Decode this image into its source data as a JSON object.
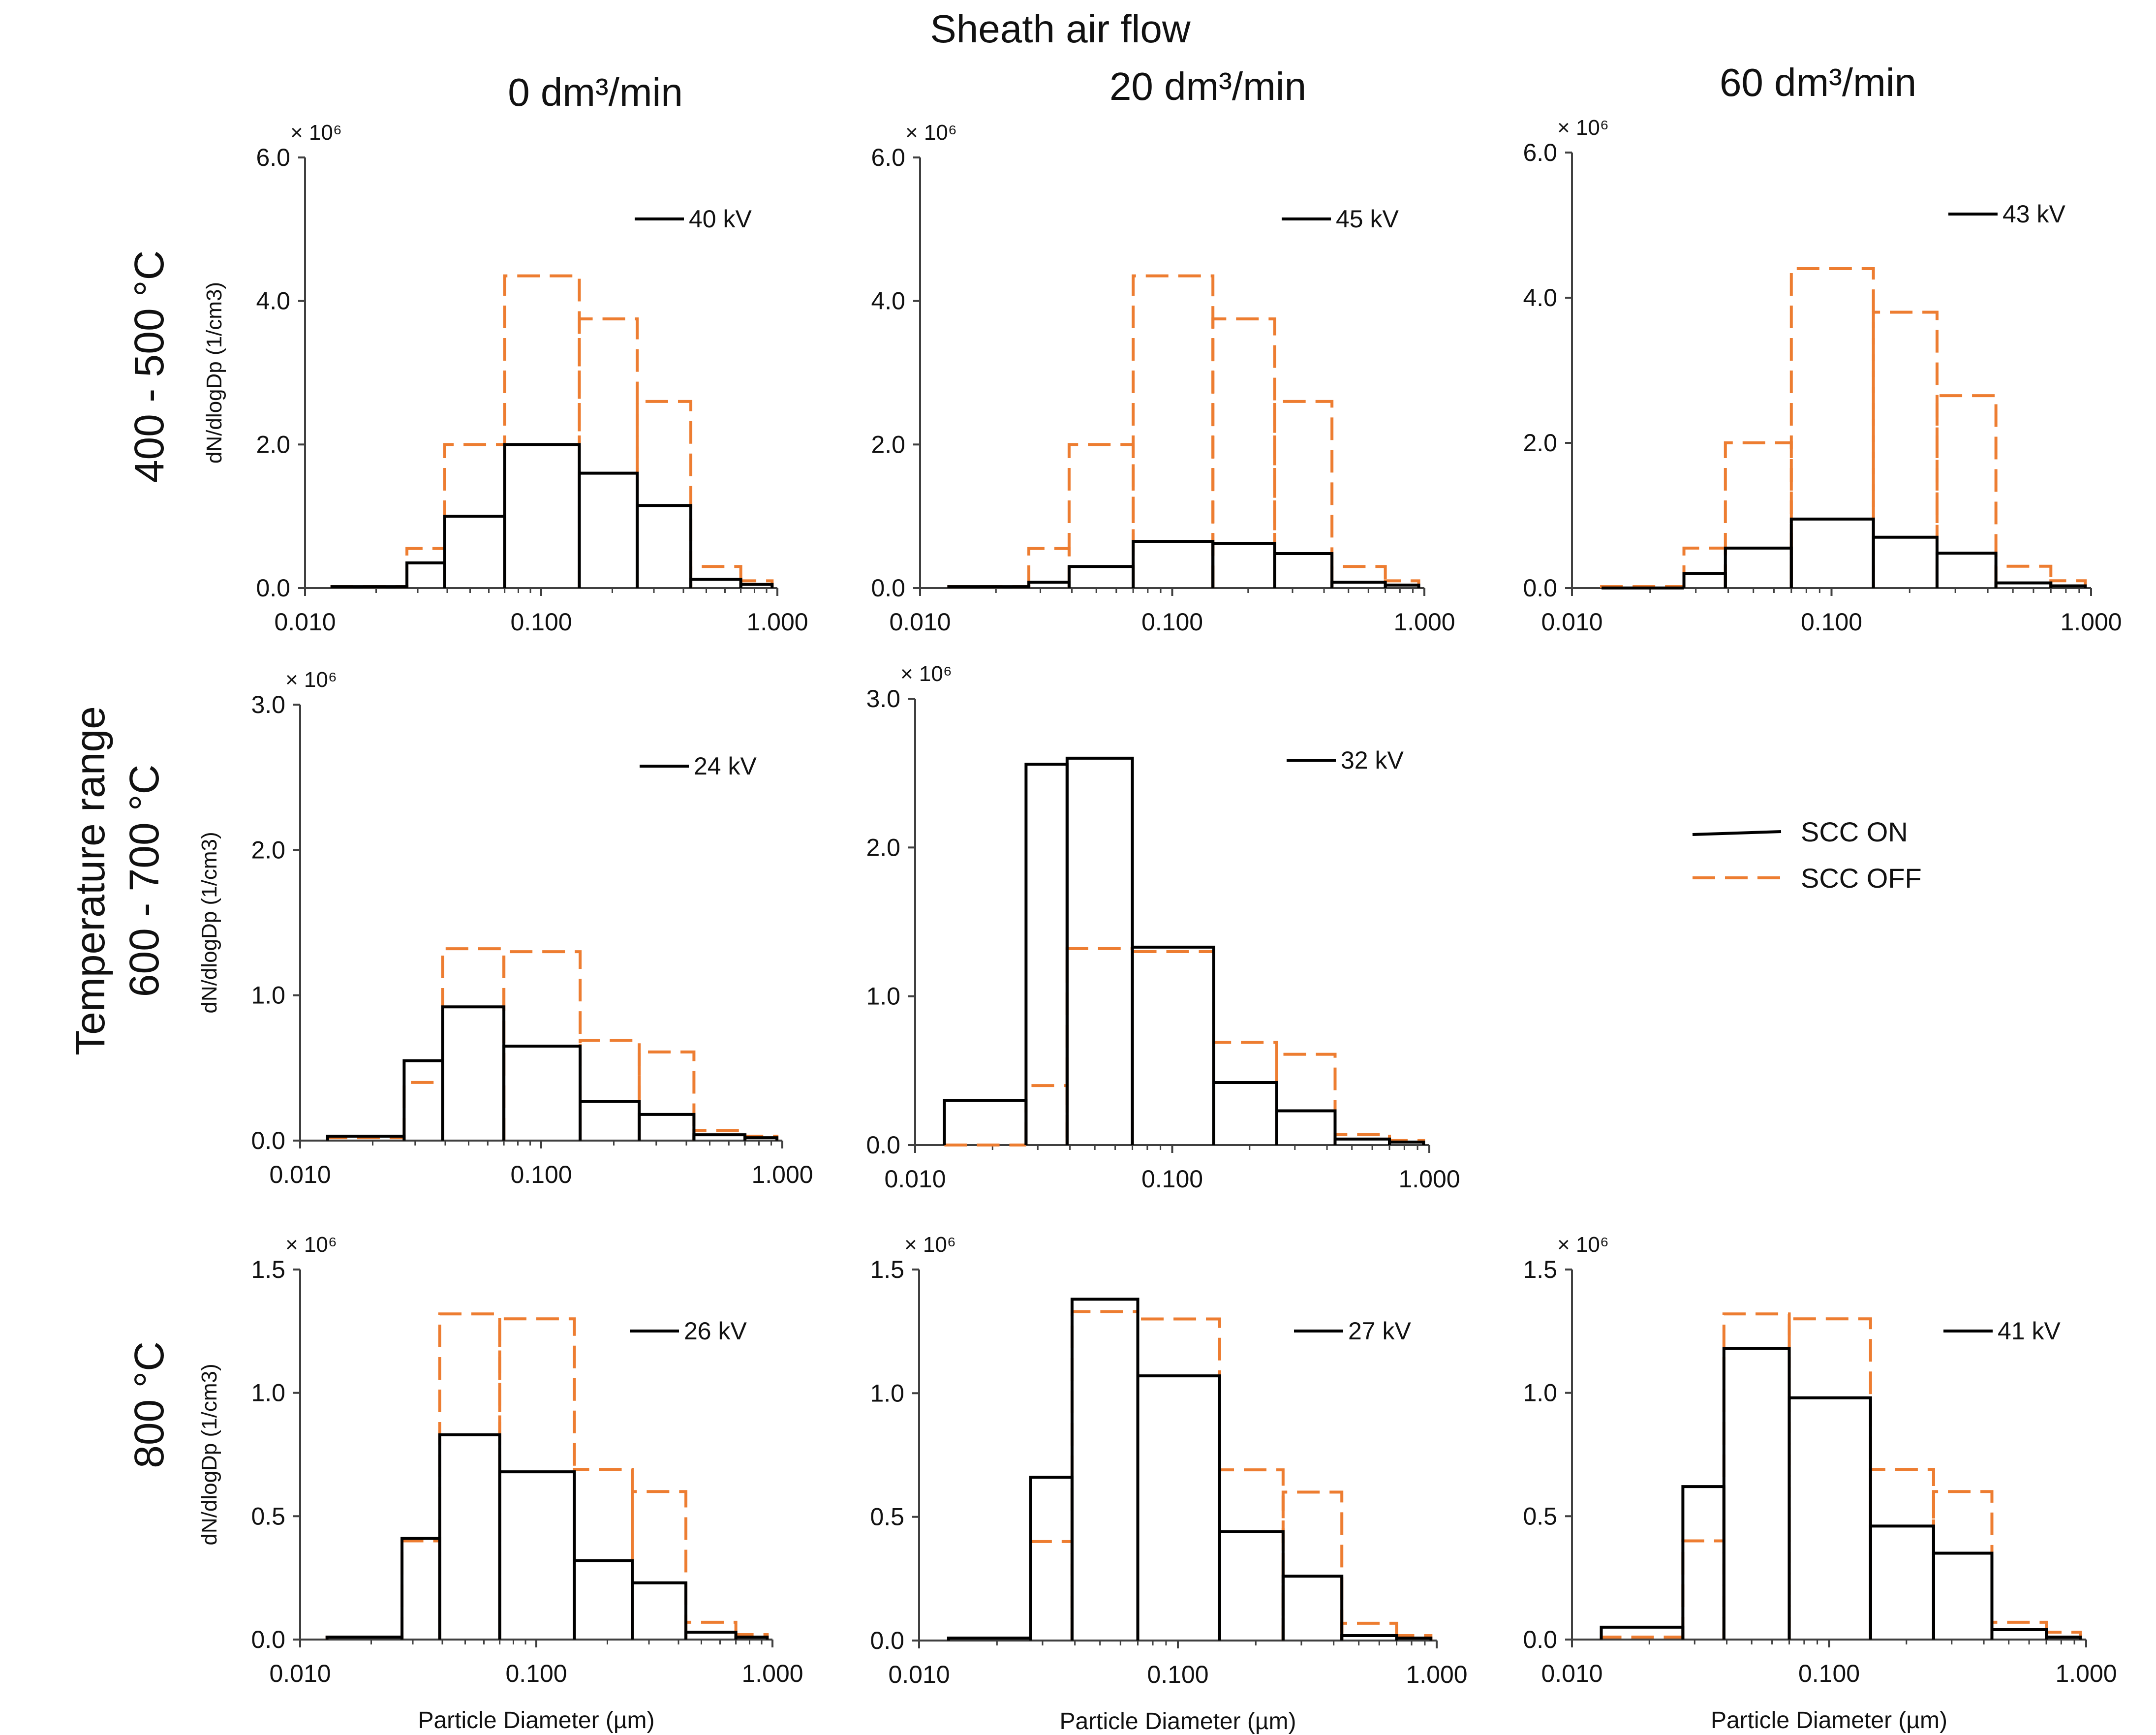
{
  "header": {
    "title": "Sheath air flow",
    "col1": "0 dm³/min",
    "col2": "20 dm³/min",
    "col3": "60 dm³/min"
  },
  "rows": {
    "row1": "400 - 500 °C",
    "row2_line1": "Temperature range",
    "row2_line2": "600 - 700 °C",
    "row3": "800 °C"
  },
  "legend": {
    "on": "SCC ON",
    "off": "SCC OFF"
  },
  "colors": {
    "on": "#000000",
    "off": "#ED7D31",
    "axis": "#404040"
  },
  "chart_data": [
    {
      "type": "histogram",
      "row": 1,
      "col": 1,
      "ylabel": "dN/dlogDp (1/cm3)",
      "xlabel": "",
      "ylim": [
        0,
        6.0
      ],
      "yticks": [
        "0.0",
        "2.0",
        "4.0",
        "6.0"
      ],
      "multiplier": "× 10⁶",
      "xlim": [
        0.01,
        1.0
      ],
      "xticks": [
        "0.010",
        "0.100",
        "1.000"
      ],
      "annotation": "40 kV",
      "bin_edges": [
        0.013,
        0.027,
        0.039,
        0.07,
        0.145,
        0.255,
        0.43,
        0.7,
        0.95
      ],
      "series": [
        {
          "name": "SCC ON",
          "values": [
            0.02,
            0.35,
            1.0,
            2.0,
            1.6,
            1.15,
            0.12,
            0.05
          ]
        },
        {
          "name": "SCC OFF",
          "values": [
            0.02,
            0.55,
            2.0,
            4.35,
            3.75,
            2.6,
            0.3,
            0.1
          ]
        }
      ]
    },
    {
      "type": "histogram",
      "row": 1,
      "col": 2,
      "ylabel": "",
      "xlabel": "",
      "ylim": [
        0,
        6.0
      ],
      "yticks": [
        "0.0",
        "2.0",
        "4.0",
        "6.0"
      ],
      "multiplier": "× 10⁶",
      "xlim": [
        0.01,
        1.0
      ],
      "xticks": [
        "0.010",
        "0.100",
        "1.000"
      ],
      "annotation": "45 kV",
      "bin_edges": [
        0.013,
        0.027,
        0.039,
        0.07,
        0.145,
        0.255,
        0.43,
        0.7,
        0.95
      ],
      "series": [
        {
          "name": "SCC ON",
          "values": [
            0.02,
            0.08,
            0.3,
            0.65,
            0.62,
            0.48,
            0.08,
            0.04
          ]
        },
        {
          "name": "SCC OFF",
          "values": [
            0.02,
            0.55,
            2.0,
            4.35,
            3.75,
            2.6,
            0.3,
            0.1
          ]
        }
      ]
    },
    {
      "type": "histogram",
      "row": 1,
      "col": 3,
      "ylabel": "",
      "xlabel": "",
      "ylim": [
        0,
        6.0
      ],
      "yticks": [
        "0.0",
        "2.0",
        "4.0",
        "6.0"
      ],
      "multiplier": "× 10⁶",
      "xlim": [
        0.01,
        1.0
      ],
      "xticks": [
        "0.010",
        "0.100",
        "1.000"
      ],
      "annotation": "43 kV",
      "bin_edges": [
        0.013,
        0.027,
        0.039,
        0.07,
        0.145,
        0.255,
        0.43,
        0.7,
        0.95
      ],
      "series": [
        {
          "name": "SCC ON",
          "values": [
            0.0,
            0.2,
            0.55,
            0.95,
            0.7,
            0.48,
            0.07,
            0.03
          ]
        },
        {
          "name": "SCC OFF",
          "values": [
            0.02,
            0.55,
            2.0,
            4.4,
            3.8,
            2.65,
            0.3,
            0.1
          ]
        }
      ]
    },
    {
      "type": "histogram",
      "row": 2,
      "col": 1,
      "ylabel": "dN/dlogDp (1/cm3)",
      "xlabel": "",
      "ylim": [
        0,
        3.0
      ],
      "yticks": [
        "0.0",
        "1.0",
        "2.0",
        "3.0"
      ],
      "multiplier": "× 10⁶",
      "xlim": [
        0.01,
        1.0
      ],
      "xticks": [
        "0.010",
        "0.100",
        "1.000"
      ],
      "annotation": "24 kV",
      "bin_edges": [
        0.013,
        0.027,
        0.039,
        0.07,
        0.145,
        0.255,
        0.43,
        0.7,
        0.95
      ],
      "series": [
        {
          "name": "SCC ON",
          "values": [
            0.03,
            0.55,
            0.92,
            0.65,
            0.27,
            0.18,
            0.04,
            0.02
          ]
        },
        {
          "name": "SCC OFF",
          "values": [
            0.02,
            0.4,
            1.32,
            1.3,
            0.69,
            0.61,
            0.07,
            0.03
          ]
        }
      ]
    },
    {
      "type": "histogram",
      "row": 2,
      "col": 2,
      "ylabel": "",
      "xlabel": "",
      "ylim": [
        0,
        3.0
      ],
      "yticks": [
        "0.0",
        "1.0",
        "2.0",
        "3.0"
      ],
      "multiplier": "× 10⁶",
      "xlim": [
        0.01,
        1.0
      ],
      "xticks": [
        "0.010",
        "0.100",
        "1.000"
      ],
      "annotation": "32 kV",
      "bin_edges": [
        0.013,
        0.027,
        0.039,
        0.07,
        0.145,
        0.255,
        0.43,
        0.7,
        0.95
      ],
      "series": [
        {
          "name": "SCC ON",
          "values": [
            0.3,
            2.56,
            2.6,
            1.33,
            0.42,
            0.23,
            0.04,
            0.02
          ]
        },
        {
          "name": "SCC OFF",
          "values": [
            0.0,
            0.4,
            1.32,
            1.3,
            0.69,
            0.61,
            0.07,
            0.03
          ]
        }
      ]
    },
    {
      "type": "histogram",
      "row": 3,
      "col": 1,
      "ylabel": "dN/dlogDp (1/cm3)",
      "xlabel": "Particle Diameter (µm)",
      "ylim": [
        0,
        1.5
      ],
      "yticks": [
        "0.0",
        "0.5",
        "1.0",
        "1.5"
      ],
      "multiplier": "× 10⁶",
      "xlim": [
        0.01,
        1.0
      ],
      "xticks": [
        "0.010",
        "0.100",
        "1.000"
      ],
      "annotation": "26 kV",
      "bin_edges": [
        0.013,
        0.027,
        0.039,
        0.07,
        0.145,
        0.255,
        0.43,
        0.7,
        0.95
      ],
      "series": [
        {
          "name": "SCC ON",
          "values": [
            0.01,
            0.41,
            0.83,
            0.68,
            0.32,
            0.23,
            0.03,
            0.01
          ]
        },
        {
          "name": "SCC OFF",
          "values": [
            0.01,
            0.4,
            1.32,
            1.3,
            0.69,
            0.6,
            0.07,
            0.02
          ]
        }
      ]
    },
    {
      "type": "histogram",
      "row": 3,
      "col": 2,
      "ylabel": "",
      "xlabel": "Particle Diameter (µm)",
      "ylim": [
        0,
        1.5
      ],
      "yticks": [
        "0.0",
        "0.5",
        "1.0",
        "1.5"
      ],
      "multiplier": "× 10⁶",
      "xlim": [
        0.01,
        1.0
      ],
      "xticks": [
        "0.010",
        "0.100",
        "1.000"
      ],
      "annotation": "27 kV",
      "bin_edges": [
        0.013,
        0.027,
        0.039,
        0.07,
        0.145,
        0.255,
        0.43,
        0.7,
        0.95
      ],
      "series": [
        {
          "name": "SCC ON",
          "values": [
            0.01,
            0.66,
            1.38,
            1.07,
            0.44,
            0.26,
            0.02,
            0.01
          ]
        },
        {
          "name": "SCC OFF",
          "values": [
            0.01,
            0.4,
            1.33,
            1.3,
            0.69,
            0.6,
            0.07,
            0.02
          ]
        }
      ]
    },
    {
      "type": "histogram",
      "row": 3,
      "col": 3,
      "ylabel": "",
      "xlabel": "Particle Diameter (µm)",
      "ylim": [
        0,
        1.5
      ],
      "yticks": [
        "0.0",
        "0.5",
        "1.0",
        "1.5"
      ],
      "multiplier": "× 10⁶",
      "xlim": [
        0.01,
        1.0
      ],
      "xticks": [
        "0.010",
        "0.100",
        "1.000"
      ],
      "annotation": "41 kV",
      "bin_edges": [
        0.013,
        0.027,
        0.039,
        0.07,
        0.145,
        0.255,
        0.43,
        0.7,
        0.95
      ],
      "series": [
        {
          "name": "SCC ON",
          "values": [
            0.05,
            0.62,
            1.18,
            0.98,
            0.46,
            0.35,
            0.04,
            0.01
          ]
        },
        {
          "name": "SCC OFF",
          "values": [
            0.01,
            0.4,
            1.32,
            1.3,
            0.69,
            0.6,
            0.07,
            0.03
          ]
        }
      ]
    }
  ]
}
